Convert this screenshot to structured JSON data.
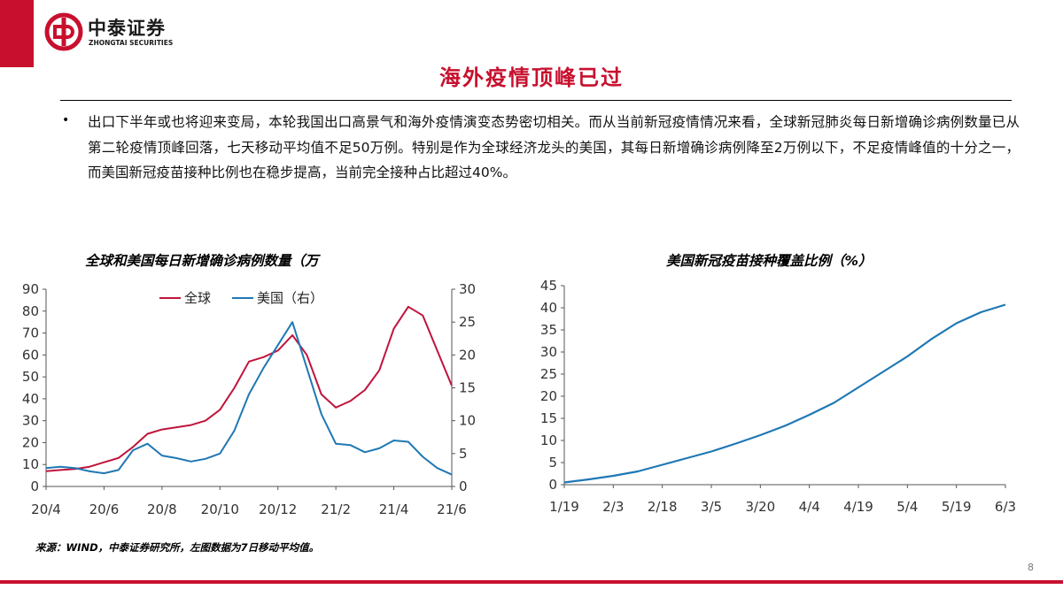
{
  "header": {
    "logo_cn": "中泰证券",
    "logo_en": "ZHONGTAI SECURITIES",
    "title": "海外疫情顶峰已过",
    "accent_color": "#c8102e"
  },
  "body": {
    "bullet": "•",
    "text": "出口下半年或也将迎来变局，本轮我国出口高景气和海外疫情演变态势密切相关。而从当前新冠疫情情况来看，全球新冠肺炎每日新增确诊病例数量已从第二轮疫情顶峰回落，七天移动平均值不足50万例。特别是作为全球经济龙头的美国，其每日新增确诊病例降至2万例以下，不足疫情峰值的十分之一，而美国新冠疫苗接种比例也在稳步提高，当前完全接种占比超过40%。"
  },
  "chart_data": [
    {
      "type": "line",
      "title": "全球和美国每日新增确诊病例数量（万",
      "x_categories": [
        "20/4",
        "20/6",
        "20/8",
        "20/10",
        "20/12",
        "21/2",
        "21/4",
        "21/6"
      ],
      "ylim_left": [
        0,
        90
      ],
      "yticks_left": [
        0,
        10,
        20,
        30,
        40,
        50,
        60,
        70,
        80,
        90
      ],
      "ylim_right": [
        0,
        30
      ],
      "yticks_right": [
        0,
        5,
        10,
        15,
        20,
        25,
        30
      ],
      "legend": "top-center",
      "series": [
        {
          "name": "全球",
          "axis": "left",
          "color": "#c0143c",
          "x": [
            0,
            0.25,
            0.5,
            0.75,
            1,
            1.25,
            1.5,
            1.75,
            2,
            2.25,
            2.5,
            2.75,
            3,
            3.25,
            3.5,
            3.75,
            4,
            4.25,
            4.5,
            4.75,
            5,
            5.25,
            5.5,
            5.75,
            6,
            6.25,
            6.5,
            6.75,
            7
          ],
          "y": [
            7,
            7.5,
            8,
            9,
            11,
            13,
            18,
            24,
            26,
            27,
            28,
            30,
            35,
            45,
            57,
            59,
            62,
            69,
            60,
            42,
            36,
            39,
            44,
            53,
            72,
            82,
            78,
            62,
            46
          ]
        },
        {
          "name": "美国（右）",
          "axis": "right",
          "color": "#1f78b4",
          "x": [
            0,
            0.25,
            0.5,
            0.75,
            1,
            1.25,
            1.5,
            1.75,
            2,
            2.25,
            2.5,
            2.75,
            3,
            3.25,
            3.5,
            3.75,
            4,
            4.25,
            4.5,
            4.75,
            5,
            5.25,
            5.5,
            5.75,
            6,
            6.25,
            6.5,
            6.75,
            7
          ],
          "y": [
            2.8,
            3,
            2.8,
            2.3,
            2,
            2.5,
            5.5,
            6.5,
            4.7,
            4.3,
            3.8,
            4.2,
            5,
            8.5,
            14,
            18,
            21.5,
            25,
            18,
            11,
            6.5,
            6.3,
            5.2,
            5.8,
            7,
            6.8,
            4.5,
            2.8,
            1.8
          ]
        }
      ]
    },
    {
      "type": "line",
      "title": "美国新冠疫苗接种覆盖比例（%）",
      "x_categories": [
        "1/19",
        "2/3",
        "2/18",
        "3/5",
        "3/20",
        "4/4",
        "4/19",
        "5/4",
        "5/19",
        "6/3"
      ],
      "ylim": [
        0,
        45
      ],
      "yticks": [
        0,
        5,
        10,
        15,
        20,
        25,
        30,
        35,
        40,
        45
      ],
      "series": [
        {
          "name": "",
          "color": "#1f78b4",
          "x": [
            0,
            0.5,
            1,
            1.5,
            2,
            2.5,
            3,
            3.5,
            4,
            4.5,
            5,
            5.5,
            6,
            6.5,
            7,
            7.5,
            8,
            8.5,
            9
          ],
          "y": [
            0.5,
            1.2,
            2,
            3,
            4.5,
            6,
            7.5,
            9.3,
            11.2,
            13.3,
            15.8,
            18.5,
            22,
            25.5,
            29,
            33,
            36.5,
            39,
            40.7
          ]
        }
      ]
    }
  ],
  "footer": {
    "source": "来源：WIND，中泰证券研究所，左图数据为7日移动平均值。",
    "page": "8"
  }
}
